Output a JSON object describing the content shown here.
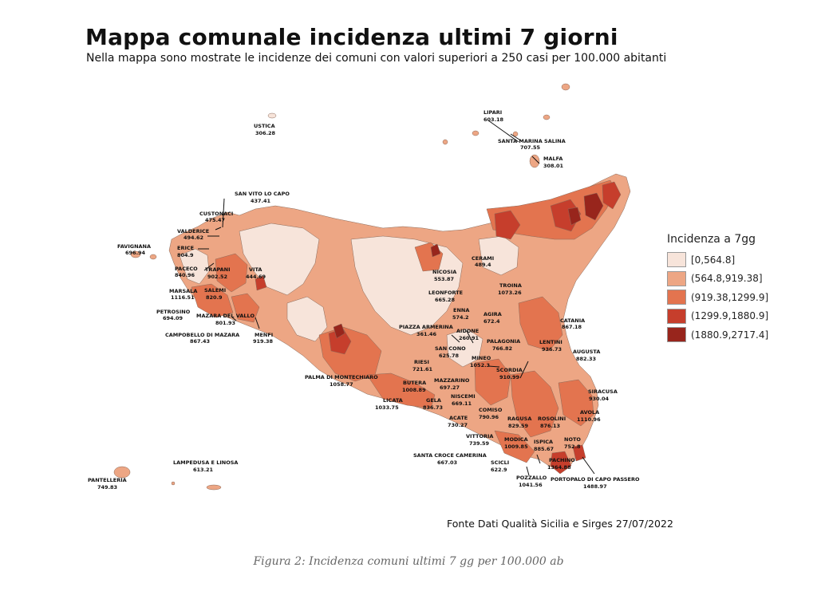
{
  "title": "Mappa comunale incidenza ultimi 7 giorni",
  "subtitle": "Nella mappa sono mostrate le incidenze dei comuni con valori superiori a 250 casi per 100.000 abitanti",
  "legend": {
    "title": "Incidenza a 7gg",
    "classes": [
      {
        "label": "[0,564.8]",
        "color": "#f7e4da"
      },
      {
        "label": "(564.8,919.38]",
        "color": "#eda684"
      },
      {
        "label": "(919.38,1299.9]",
        "color": "#e3744f"
      },
      {
        "label": "(1299.9,1880.9]",
        "color": "#c63e2c"
      },
      {
        "label": "(1880.9,2717.4]",
        "color": "#98251c"
      }
    ]
  },
  "labels": [
    {
      "name": "USTICA",
      "value": "306.28"
    },
    {
      "name": "LIPARI",
      "value": "603.18"
    },
    {
      "name": "SANTA MARINA SALINA",
      "value": "707.55"
    },
    {
      "name": "MALFA",
      "value": "308.01"
    },
    {
      "name": "SAN VITO LO CAPO",
      "value": "437.41"
    },
    {
      "name": "CUSTONACI",
      "value": "475.47"
    },
    {
      "name": "VALDERICE",
      "value": "494.62"
    },
    {
      "name": "FAVIGNANA",
      "value": "696.94"
    },
    {
      "name": "ERICE",
      "value": "804.9"
    },
    {
      "name": "PACECO",
      "value": "840.96"
    },
    {
      "name": "TRAPANI",
      "value": "902.52"
    },
    {
      "name": "VITA",
      "value": "444.69"
    },
    {
      "name": "MARSALA",
      "value": "1116.51"
    },
    {
      "name": "SALEMI",
      "value": "820.9"
    },
    {
      "name": "PETROSINO",
      "value": "694.09"
    },
    {
      "name": "MAZARA DEL VALLO",
      "value": "801.93"
    },
    {
      "name": "CAMPOBELLO DI MAZARA",
      "value": "867.43"
    },
    {
      "name": "MENFI",
      "value": "919.38"
    },
    {
      "name": "CERAMI",
      "value": "489.4"
    },
    {
      "name": "NICOSIA",
      "value": "553.87"
    },
    {
      "name": "LEONFORTE",
      "value": "665.28"
    },
    {
      "name": "TROINA",
      "value": "1073.26"
    },
    {
      "name": "ENNA",
      "value": "574.2"
    },
    {
      "name": "AGIRA",
      "value": "672.4"
    },
    {
      "name": "CATANIA",
      "value": "867.18"
    },
    {
      "name": "PIAZZA ARMERINA",
      "value": "361.46"
    },
    {
      "name": "AIDONE",
      "value": "260.91"
    },
    {
      "name": "PALAGONIA",
      "value": "766.82"
    },
    {
      "name": "LENTINI",
      "value": "936.73"
    },
    {
      "name": "AUGUSTA",
      "value": "882.33"
    },
    {
      "name": "SAN CONO",
      "value": "625.78"
    },
    {
      "name": "MINEO",
      "value": "1052.3"
    },
    {
      "name": "RIESI",
      "value": "721.61"
    },
    {
      "name": "SCORDIA",
      "value": "910.99"
    },
    {
      "name": "PALMA DI MONTECHIARO",
      "value": "1058.77"
    },
    {
      "name": "BUTERA",
      "value": "1008.89"
    },
    {
      "name": "MAZZARINO",
      "value": "697.27"
    },
    {
      "name": "SIRACUSA",
      "value": "930.04"
    },
    {
      "name": "LICATA",
      "value": "1033.75"
    },
    {
      "name": "GELA",
      "value": "836.73"
    },
    {
      "name": "NISCEMI",
      "value": "669.11"
    },
    {
      "name": "COMISO",
      "value": "790.96"
    },
    {
      "name": "AVOLA",
      "value": "1110.96"
    },
    {
      "name": "ACATE",
      "value": "730.27"
    },
    {
      "name": "RAGUSA",
      "value": "829.59"
    },
    {
      "name": "ROSOLINI",
      "value": "876.13"
    },
    {
      "name": "VITTORIA",
      "value": "739.59"
    },
    {
      "name": "NOTO",
      "value": "752.8"
    },
    {
      "name": "MODICA",
      "value": "1009.85"
    },
    {
      "name": "ISPICA",
      "value": "885.67"
    },
    {
      "name": "SANTA CROCE CAMERINA",
      "value": "667.03"
    },
    {
      "name": "PACHINO",
      "value": "1364.88"
    },
    {
      "name": "LAMPEDUSA E LINOSA",
      "value": "613.21"
    },
    {
      "name": "SCICLI",
      "value": "622.9"
    },
    {
      "name": "POZZALLO",
      "value": "1041.56"
    },
    {
      "name": "PORTOPALO DI CAPO PASSERO",
      "value": "1488.97"
    },
    {
      "name": "PANTELLERIA",
      "value": "749.83"
    }
  ],
  "source": "Fonte Dati Qualità Sicilia e Sirges 27/07/2022",
  "caption": "Figura 2: Incidenza comuni ultimi 7 gg per 100.000 ab"
}
